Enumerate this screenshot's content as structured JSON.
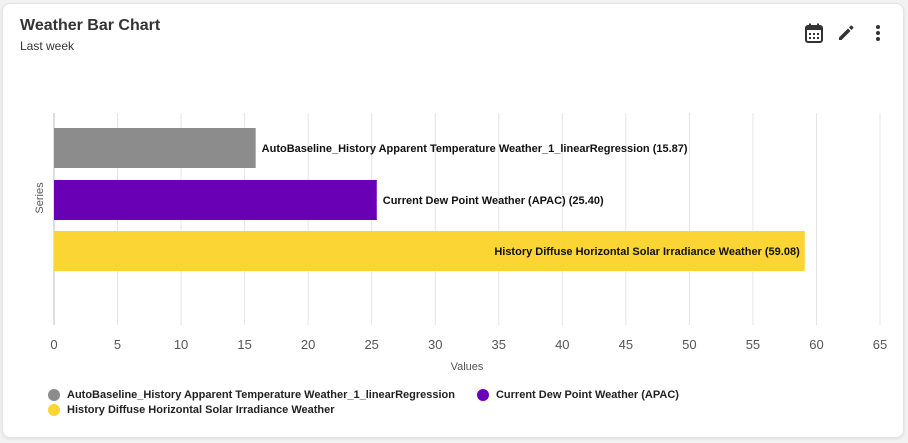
{
  "card": {
    "title": "Weather Bar Chart",
    "subtitle": "Last week"
  },
  "toolbar": {
    "icons": [
      "calendar-icon",
      "pencil-icon",
      "kebab-menu-icon"
    ]
  },
  "chart_data": {
    "type": "bar",
    "orientation": "horizontal",
    "xlabel": "Values",
    "ylabel": "Series",
    "xlim": [
      0,
      65
    ],
    "xticks": [
      0,
      5,
      10,
      15,
      20,
      25,
      30,
      35,
      40,
      45,
      50,
      55,
      60,
      65
    ],
    "grid": "vertical",
    "legend_position": "bottom",
    "bars": [
      {
        "name": "AutoBaseline_History Apparent Temperature Weather_1_linearRegression",
        "value": 15.87,
        "label": "AutoBaseline_History Apparent Temperature Weather_1_linearRegression (15.87)",
        "color": "#8c8c8c"
      },
      {
        "name": "Current Dew Point Weather (APAC)",
        "value": 25.4,
        "label": "Current Dew Point Weather (APAC) (25.40)",
        "color": "#6a00b5"
      },
      {
        "name": "History Diffuse Horizontal Solar Irradiance Weather",
        "value": 59.08,
        "label": "History Diffuse Horizontal Solar Irradiance Weather (59.08)",
        "color": "#fbd533"
      }
    ]
  }
}
